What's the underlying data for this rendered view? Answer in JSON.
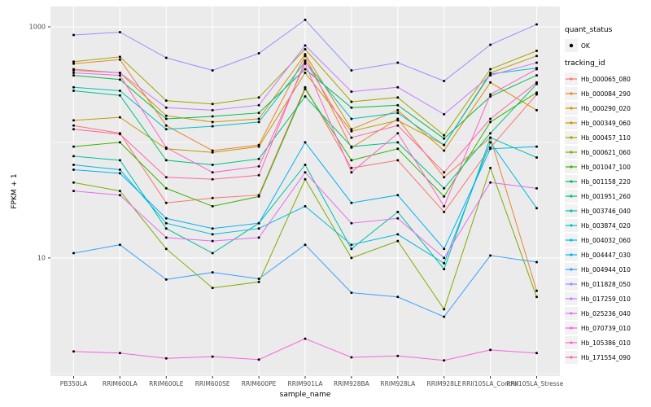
{
  "chart_data": {
    "type": "line",
    "title": "",
    "xlabel": "sample_name",
    "ylabel": "FPKM + 1",
    "y_scale": "log10",
    "ylim": [
      0.95,
      1500
    ],
    "y_ticks": [
      10,
      1000
    ],
    "y_tick_labels": [
      "10",
      "1000"
    ],
    "y_minor_gridlines": [
      1,
      100
    ],
    "grid": true,
    "legend_position": "right",
    "panel_bg": "#EBEBEB",
    "grid_color": "#FFFFFF",
    "tick_color": "#333333",
    "axis_text_color": "#4D4D4D",
    "point_color": "#000000",
    "categories": [
      "PB350LA",
      "RRIM600LA",
      "RRIM600LE",
      "RRIM600SE",
      "RRIM600PE",
      "RRIM901LA",
      "RRIM928BA",
      "RRIM928LA",
      "RRIM928LE",
      "RRII105LA_Control",
      "RRII105LA_Stressed"
    ],
    "series": [
      {
        "name": "Hb_000065_080",
        "color": "#F8766D",
        "values": [
          140,
          120,
          30,
          33,
          35,
          300,
          60,
          70,
          25,
          90,
          260
        ]
      },
      {
        "name": "Hb_000084_290",
        "color": "#EA8331",
        "values": [
          480,
          520,
          140,
          85,
          95,
          560,
          90,
          160,
          50,
          110,
          5.2
        ]
      },
      {
        "name": "Hb_000290_020",
        "color": "#D89000",
        "values": [
          430,
          400,
          170,
          150,
          160,
          580,
          130,
          190,
          85,
          330,
          190
        ]
      },
      {
        "name": "Hb_000349_060",
        "color": "#C09B00",
        "values": [
          155,
          165,
          88,
          82,
          92,
          400,
          125,
          155,
          95,
          400,
          560
        ]
      },
      {
        "name": "Hb_000457_110",
        "color": "#A3A500",
        "values": [
          500,
          550,
          230,
          215,
          245,
          640,
          225,
          245,
          115,
          430,
          620
        ]
      },
      {
        "name": "Hb_000621_060",
        "color": "#7CAE00",
        "values": [
          45,
          38,
          12,
          5.5,
          6.2,
          48,
          10,
          14,
          3.6,
          60,
          4.6
        ]
      },
      {
        "name": "Hb_001047_100",
        "color": "#39B600",
        "values": [
          92,
          100,
          40,
          28,
          34,
          290,
          70,
          88,
          34,
          150,
          270
        ]
      },
      {
        "name": "Hb_001158_220",
        "color": "#00BB4E",
        "values": [
          380,
          350,
          160,
          168,
          180,
          430,
          200,
          210,
          108,
          250,
          380
        ]
      },
      {
        "name": "Hb_001951_260",
        "color": "#00BF7D",
        "values": [
          280,
          255,
          70,
          64,
          72,
          250,
          92,
          100,
          40,
          120,
          320
        ]
      },
      {
        "name": "Hb_003746_040",
        "color": "#00C1A3",
        "values": [
          76,
          70,
          18,
          11,
          20,
          64,
          12,
          25,
          8,
          110,
          74
        ]
      },
      {
        "name": "Hb_003874_020",
        "color": "#00BFC4",
        "values": [
          300,
          280,
          130,
          138,
          150,
          500,
          160,
          180,
          95,
          390,
          440
        ]
      },
      {
        "name": "Hb_004032_060",
        "color": "#00BAE0",
        "values": [
          64,
          58,
          20,
          16,
          18,
          28,
          13,
          16,
          9,
          100,
          27
        ]
      },
      {
        "name": "Hb_004447_030",
        "color": "#00B0F6",
        "values": [
          58,
          54,
          22,
          18,
          20,
          100,
          30,
          35,
          12,
          88,
          92
        ]
      },
      {
        "name": "Hb_004944_010",
        "color": "#35A2FF",
        "values": [
          11,
          13,
          6.5,
          7.5,
          6.6,
          13,
          5,
          4.6,
          3.1,
          10.5,
          9.2
        ]
      },
      {
        "name": "Hb_011828_050",
        "color": "#9590FF",
        "values": [
          850,
          900,
          540,
          420,
          590,
          1150,
          420,
          490,
          340,
          700,
          1050
        ]
      },
      {
        "name": "Hb_017259_010",
        "color": "#C77CFF",
        "values": [
          420,
          400,
          200,
          190,
          210,
          690,
          275,
          300,
          175,
          380,
          490
        ]
      },
      {
        "name": "Hb_025236_040",
        "color": "#E76BF3",
        "values": [
          38,
          35,
          15,
          14,
          15,
          55,
          20,
          22,
          10,
          45,
          40
        ]
      },
      {
        "name": "Hb_070739_010",
        "color": "#FA62DB",
        "values": [
          1.55,
          1.5,
          1.35,
          1.4,
          1.32,
          2.0,
          1.38,
          1.42,
          1.3,
          1.6,
          1.5
        ]
      },
      {
        "name": "Hb_105386_010",
        "color": "#FF61CC",
        "values": [
          400,
          380,
          90,
          55,
          62,
          480,
          55,
          120,
          28,
          260,
          430
        ]
      },
      {
        "name": "Hb_171554_090",
        "color": "#FF65AA",
        "values": [
          130,
          118,
          50,
          48,
          52,
          510,
          110,
          140,
          55,
          160,
          330
        ]
      }
    ],
    "legend": {
      "quant_status_title": "quant_status",
      "quant_status_items": [
        "OK"
      ],
      "tracking_id_title": "tracking_id"
    }
  }
}
